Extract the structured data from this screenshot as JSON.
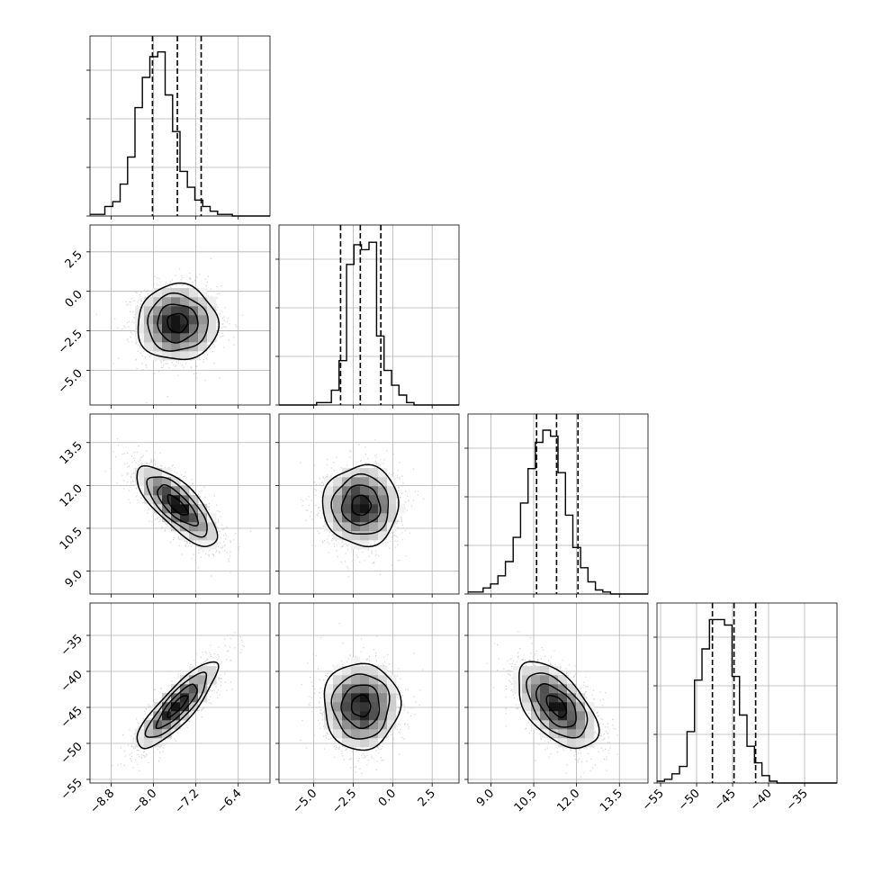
{
  "chart_data": {
    "type": "corner",
    "parameters": [
      {
        "range": [
          -9.2,
          -5.8
        ],
        "ticks": [
          -8.8,
          -8.0,
          -7.2,
          -6.4
        ],
        "tick_labels": [
          "−8.8",
          "−8.0",
          "−7.2",
          "−6.4"
        ]
      },
      {
        "range": [
          -7.2,
          4.2
        ],
        "ticks": [
          -5.0,
          -2.5,
          0.0,
          2.5
        ],
        "tick_labels": [
          "−5.0",
          "−2.5",
          "0.0",
          "2.5"
        ]
      },
      {
        "range": [
          8.2,
          14.5
        ],
        "ticks": [
          9.0,
          10.5,
          12.0,
          13.5
        ],
        "tick_labels": [
          "9.0",
          "10.5",
          "12.0",
          "13.5"
        ]
      },
      {
        "range": [
          -55.5,
          -30.5
        ],
        "ticks": [
          -55,
          -50,
          -45,
          -40,
          -35
        ],
        "tick_labels": [
          "−55",
          "−50",
          "−45",
          "−40",
          "−35"
        ]
      }
    ],
    "marginals": [
      {
        "param": 0,
        "bins": [
          -9.2,
          -9.06,
          -8.92,
          -8.77,
          -8.63,
          -8.49,
          -8.35,
          -8.21,
          -8.07,
          -7.92,
          -7.78,
          -7.64,
          -7.5,
          -7.36,
          -7.22,
          -7.07,
          -6.93,
          -6.79,
          -6.65,
          -6.51,
          -6.37,
          -6.22,
          -6.08,
          -5.94,
          -5.8
        ],
        "counts": [
          1,
          1,
          6,
          9,
          20,
          37,
          68,
          87,
          100,
          103,
          76,
          53,
          28,
          18,
          10,
          6,
          3,
          1,
          1,
          0,
          0,
          0,
          0,
          0
        ],
        "quantiles": [
          -8.02,
          -7.55,
          -7.1
        ],
        "ylim": [
          0,
          113
        ]
      },
      {
        "param": 1,
        "bins": [
          -7.2,
          -6.72,
          -6.25,
          -5.78,
          -5.3,
          -4.82,
          -4.35,
          -3.88,
          -3.4,
          -2.92,
          -2.45,
          -1.98,
          -1.5,
          -1.02,
          -0.55,
          -0.07,
          0.4,
          0.88,
          1.35,
          1.82,
          2.3,
          2.77,
          3.25,
          3.72,
          4.2
        ],
        "counts": [
          0,
          0,
          0,
          0,
          0,
          1,
          1,
          6,
          18,
          57,
          65,
          63,
          66,
          28,
          14,
          8,
          4,
          1,
          0,
          0,
          0,
          0,
          0,
          0
        ],
        "quantiles": [
          -3.3,
          -2.05,
          -0.75
        ],
        "ylim": [
          0,
          73
        ]
      },
      {
        "param": 2,
        "bins": [
          8.2,
          8.46,
          8.73,
          8.99,
          9.25,
          9.51,
          9.78,
          10.04,
          10.3,
          10.56,
          10.82,
          11.09,
          11.35,
          11.61,
          11.87,
          12.14,
          12.4,
          12.66,
          12.92,
          13.19,
          13.45,
          13.71,
          13.98,
          14.24,
          14.5
        ],
        "counts": [
          1,
          1,
          3,
          5,
          9,
          16,
          28,
          45,
          62,
          75,
          81,
          78,
          60,
          39,
          23,
          13,
          6,
          2,
          1,
          0,
          0,
          0,
          0,
          0
        ],
        "quantiles": [
          10.6,
          11.3,
          12.05
        ],
        "ylim": [
          0,
          89
        ]
      },
      {
        "param": 3,
        "bins": [
          -55.5,
          -54.46,
          -53.42,
          -52.38,
          -51.33,
          -50.29,
          -49.25,
          -48.21,
          -47.17,
          -46.12,
          -45.08,
          -44.04,
          -43.0,
          -41.96,
          -40.92,
          -39.88,
          -38.83,
          -37.79,
          -36.75,
          -35.71,
          -34.67,
          -33.62,
          -32.58,
          -31.54,
          -30.5
        ],
        "counts": [
          1,
          2,
          5,
          9,
          28,
          56,
          73,
          89,
          89,
          86,
          58,
          37,
          20,
          11,
          4,
          1,
          0,
          0,
          0,
          0,
          0,
          0,
          0,
          0
        ],
        "quantiles": [
          -47.8,
          -44.8,
          -41.8
        ],
        "ylim": [
          0,
          98
        ]
      }
    ],
    "joint": [
      {
        "row": 1,
        "col": 0,
        "mean": [
          -7.55,
          -2.0
        ],
        "sd": [
          0.38,
          1.2
        ],
        "corr": 0.0
      },
      {
        "row": 2,
        "col": 0,
        "mean": [
          -7.55,
          11.3
        ],
        "sd": [
          0.38,
          0.7
        ],
        "corr": -0.75
      },
      {
        "row": 2,
        "col": 1,
        "mean": [
          -2.0,
          11.3
        ],
        "sd": [
          1.2,
          0.7
        ],
        "corr": 0.0
      },
      {
        "row": 3,
        "col": 0,
        "mean": [
          -7.55,
          -44.8
        ],
        "sd": [
          0.38,
          3.0
        ],
        "corr": 0.85
      },
      {
        "row": 3,
        "col": 1,
        "mean": [
          -2.0,
          -44.8
        ],
        "sd": [
          1.2,
          3.0
        ],
        "corr": 0.0
      },
      {
        "row": 3,
        "col": 2,
        "mean": [
          11.3,
          -44.8
        ],
        "sd": [
          0.7,
          3.0
        ],
        "corr": -0.55
      }
    ],
    "grid": true,
    "colors": {
      "line": "#000000",
      "grid": "#b0b0b0",
      "scatter": "#c8c8c8"
    }
  }
}
